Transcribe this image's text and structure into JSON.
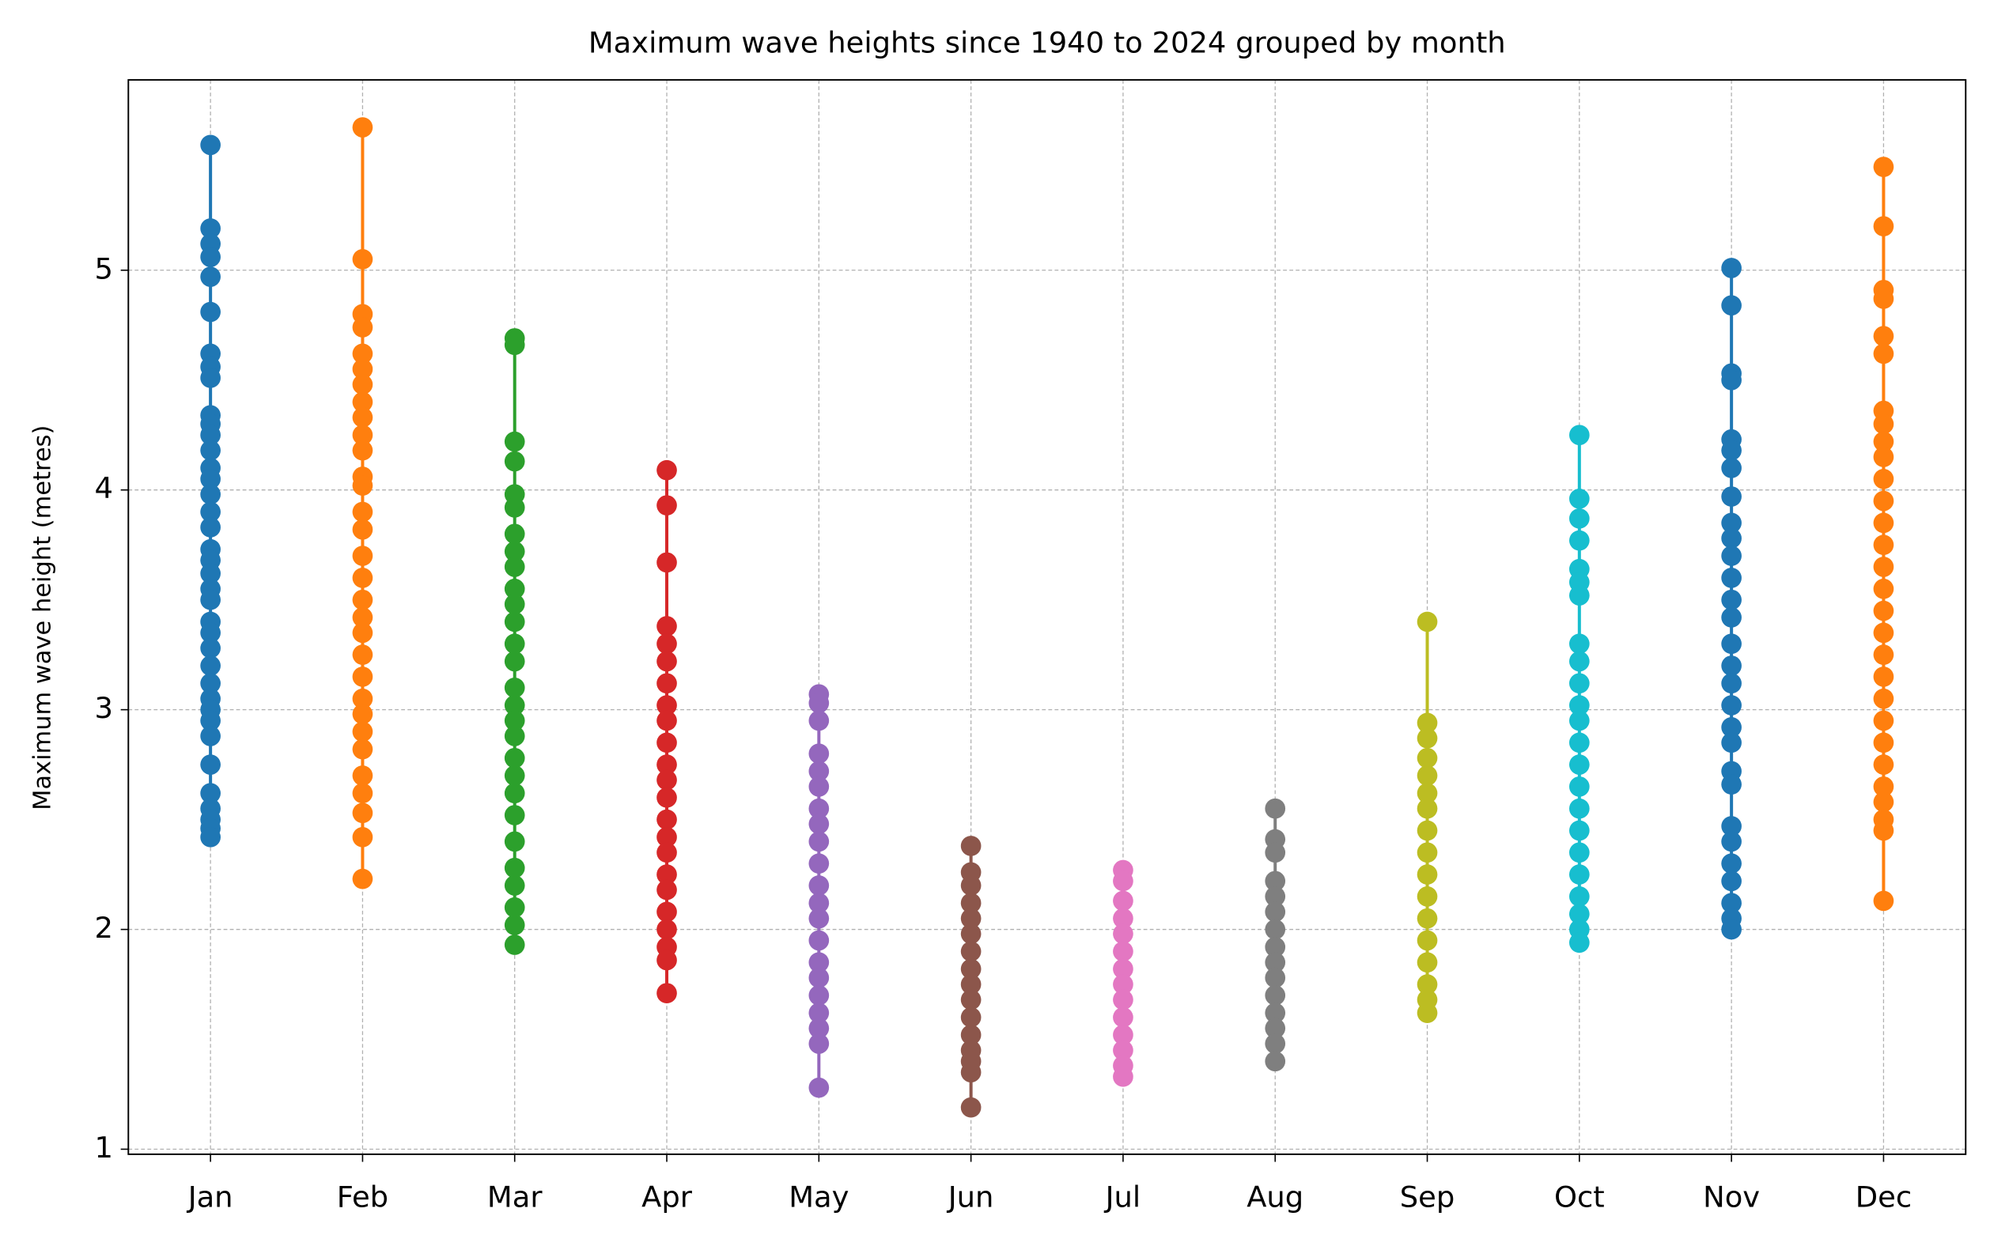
{
  "chart_data": {
    "type": "strip",
    "title": "Maximum wave heights since 1940 to 2024 grouped by month",
    "y_label": "Maximum wave height (metres)",
    "categories": [
      "Jan",
      "Feb",
      "Mar",
      "Apr",
      "May",
      "Jun",
      "Jul",
      "Aug",
      "Sep",
      "Oct",
      "Nov",
      "Dec"
    ],
    "colors": [
      "#1f77b4",
      "#ff7f0e",
      "#2ca02c",
      "#d62728",
      "#9467bd",
      "#8c564b",
      "#e377c2",
      "#7f7f7f",
      "#bcbd22",
      "#17becf",
      "#1f77b4",
      "#ff7f0e"
    ],
    "values": [
      [
        5.57,
        5.19,
        5.12,
        5.06,
        4.97,
        4.81,
        4.62,
        4.56,
        4.51,
        4.34,
        4.3,
        4.25,
        4.18,
        4.1,
        4.05,
        3.98,
        3.9,
        3.83,
        3.73,
        3.68,
        3.62,
        3.55,
        3.5,
        3.4,
        3.35,
        3.28,
        3.2,
        3.12,
        3.05,
        3.0,
        2.95,
        2.88,
        2.75,
        2.62,
        2.55,
        2.5,
        2.46,
        2.42
      ],
      [
        5.65,
        5.05,
        4.8,
        4.74,
        4.62,
        4.55,
        4.48,
        4.4,
        4.33,
        4.25,
        4.18,
        4.06,
        4.02,
        3.9,
        3.82,
        3.7,
        3.6,
        3.5,
        3.42,
        3.35,
        3.25,
        3.15,
        3.05,
        2.98,
        2.9,
        2.82,
        2.7,
        2.62,
        2.53,
        2.42,
        2.23
      ],
      [
        4.69,
        4.66,
        4.22,
        4.13,
        3.98,
        3.92,
        3.8,
        3.72,
        3.65,
        3.55,
        3.48,
        3.4,
        3.3,
        3.22,
        3.1,
        3.02,
        2.95,
        2.88,
        2.78,
        2.7,
        2.62,
        2.52,
        2.4,
        2.28,
        2.2,
        2.1,
        2.02,
        1.93
      ],
      [
        4.09,
        3.93,
        3.67,
        3.38,
        3.3,
        3.22,
        3.12,
        3.02,
        2.95,
        2.85,
        2.75,
        2.68,
        2.6,
        2.5,
        2.42,
        2.35,
        2.25,
        2.18,
        2.08,
        2.0,
        1.92,
        1.86,
        1.71
      ],
      [
        3.07,
        3.03,
        2.95,
        2.8,
        2.72,
        2.65,
        2.55,
        2.48,
        2.4,
        2.3,
        2.2,
        2.12,
        2.05,
        1.95,
        1.85,
        1.78,
        1.7,
        1.62,
        1.55,
        1.48,
        1.28
      ],
      [
        2.38,
        2.26,
        2.2,
        2.12,
        2.05,
        1.98,
        1.9,
        1.82,
        1.75,
        1.68,
        1.6,
        1.52,
        1.45,
        1.4,
        1.35,
        1.19
      ],
      [
        2.27,
        2.22,
        2.13,
        2.05,
        1.98,
        1.9,
        1.82,
        1.75,
        1.68,
        1.6,
        1.52,
        1.45,
        1.38,
        1.33
      ],
      [
        2.55,
        2.41,
        2.35,
        2.22,
        2.15,
        2.08,
        2.0,
        1.92,
        1.85,
        1.78,
        1.7,
        1.62,
        1.55,
        1.48,
        1.4
      ],
      [
        3.4,
        2.94,
        2.87,
        2.78,
        2.7,
        2.62,
        2.55,
        2.45,
        2.35,
        2.25,
        2.15,
        2.05,
        1.95,
        1.85,
        1.75,
        1.68,
        1.62
      ],
      [
        4.25,
        3.96,
        3.87,
        3.77,
        3.64,
        3.58,
        3.52,
        3.3,
        3.22,
        3.12,
        3.02,
        2.95,
        2.85,
        2.75,
        2.65,
        2.55,
        2.45,
        2.35,
        2.25,
        2.15,
        2.07,
        2.0,
        1.94
      ],
      [
        5.01,
        4.84,
        4.53,
        4.5,
        4.23,
        4.18,
        4.1,
        3.97,
        3.85,
        3.78,
        3.7,
        3.6,
        3.5,
        3.42,
        3.3,
        3.2,
        3.12,
        3.02,
        2.92,
        2.85,
        2.72,
        2.66,
        2.47,
        2.4,
        2.3,
        2.22,
        2.12,
        2.05,
        2.0
      ],
      [
        5.47,
        5.2,
        4.91,
        4.87,
        4.7,
        4.62,
        4.36,
        4.3,
        4.22,
        4.15,
        4.05,
        3.95,
        3.85,
        3.75,
        3.65,
        3.55,
        3.45,
        3.35,
        3.25,
        3.15,
        3.05,
        2.95,
        2.85,
        2.75,
        2.65,
        2.58,
        2.5,
        2.45,
        2.13
      ]
    ],
    "ylim": [
      0.977,
      5.866
    ],
    "yticks": [
      1,
      2,
      3,
      4,
      5
    ],
    "grid": true
  }
}
